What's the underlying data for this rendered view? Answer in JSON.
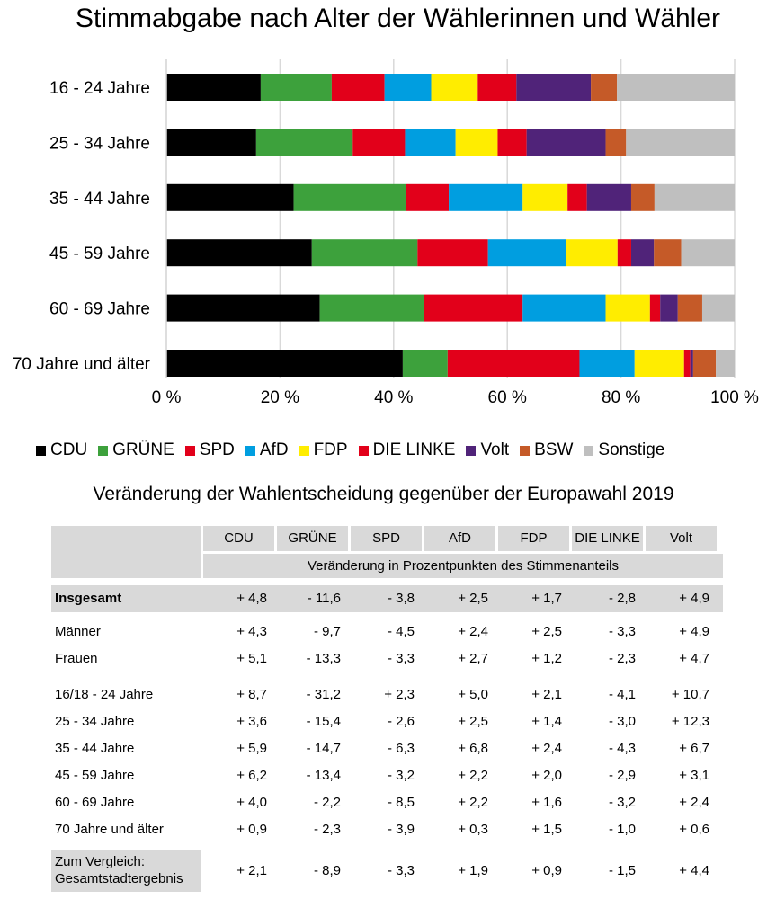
{
  "chart_data": {
    "type": "bar",
    "stacked": "percent",
    "orientation": "horizontal",
    "title": "Stimmabgabe nach Alter der Wählerinnen und Wähler",
    "categories": [
      "16 - 24 Jahre",
      "25 - 34 Jahre",
      "35 - 44 Jahre",
      "45 - 59 Jahre",
      "60 - 69 Jahre",
      "70 Jahre und älter"
    ],
    "xlim": [
      0,
      100
    ],
    "xticks": [
      "0 %",
      "20 %",
      "40 %",
      "60 %",
      "80 %",
      "100 %"
    ],
    "grid": true,
    "legend_position": "bottom",
    "series": [
      {
        "name": "CDU",
        "color": "#000000",
        "values": [
          16.6,
          15.8,
          22.4,
          25.6,
          27.0,
          41.6
        ]
      },
      {
        "name": "GRÜNE",
        "color": "#3da13c",
        "values": [
          12.5,
          17.0,
          19.8,
          18.6,
          18.4,
          7.9
        ]
      },
      {
        "name": "SPD",
        "color": "#e2001a",
        "values": [
          9.3,
          9.2,
          7.5,
          12.4,
          17.3,
          23.2
        ]
      },
      {
        "name": "AfD",
        "color": "#009ee0",
        "values": [
          8.2,
          8.9,
          13.0,
          13.7,
          14.6,
          9.7
        ]
      },
      {
        "name": "FDP",
        "color": "#ffed00",
        "values": [
          8.2,
          7.4,
          7.9,
          9.1,
          7.8,
          8.7
        ]
      },
      {
        "name": "DIE LINKE",
        "color": "#e2001a",
        "values": [
          6.8,
          5.1,
          3.4,
          2.4,
          1.8,
          1.1
        ]
      },
      {
        "name": "Volt",
        "color": "#502379",
        "values": [
          13.1,
          13.9,
          7.8,
          4.0,
          3.1,
          0.5
        ]
      },
      {
        "name": "BSW",
        "color": "#c55a28",
        "values": [
          4.6,
          3.6,
          4.1,
          4.8,
          4.3,
          4.0
        ]
      },
      {
        "name": "Sonstige",
        "color": "#bfbfbf",
        "values": [
          20.7,
          19.1,
          14.1,
          9.4,
          5.7,
          3.3
        ]
      }
    ]
  },
  "table": {
    "title": "Veränderung der Wahlentscheidung gegenüber der Europawahl 2019",
    "columns": [
      "CDU",
      "GRÜNE",
      "SPD",
      "AfD",
      "FDP",
      "DIE LINKE",
      "Volt"
    ],
    "subheader": "Veränderung in Prozentpunkten des Stimmenanteils",
    "rows": [
      {
        "label": "Insgesamt",
        "values": [
          "+ 4,8",
          "- 11,6",
          "- 3,8",
          "+ 2,5",
          "+ 1,7",
          "- 2,8",
          "+ 4,9"
        ]
      },
      {
        "label": "Männer",
        "values": [
          "+ 4,3",
          "- 9,7",
          "- 4,5",
          "+ 2,4",
          "+ 2,5",
          "- 3,3",
          "+ 4,9"
        ]
      },
      {
        "label": "Frauen",
        "values": [
          "+ 5,1",
          "- 13,3",
          "- 3,3",
          "+ 2,7",
          "+ 1,2",
          "- 2,3",
          "+ 4,7"
        ]
      },
      {
        "label": "16/18 - 24 Jahre",
        "values": [
          "+ 8,7",
          "- 31,2",
          "+ 2,3",
          "+ 5,0",
          "+ 2,1",
          "- 4,1",
          "+ 10,7"
        ]
      },
      {
        "label": "25 - 34 Jahre",
        "values": [
          "+ 3,6",
          "- 15,4",
          "- 2,6",
          "+ 2,5",
          "+ 1,4",
          "- 3,0",
          "+ 12,3"
        ]
      },
      {
        "label": "35 - 44 Jahre",
        "values": [
          "+ 5,9",
          "- 14,7",
          "- 6,3",
          "+ 6,8",
          "+ 2,4",
          "- 4,3",
          "+ 6,7"
        ]
      },
      {
        "label": "45 - 59 Jahre",
        "values": [
          "+ 6,2",
          "- 13,4",
          "- 3,2",
          "+ 2,2",
          "+ 2,0",
          "- 2,9",
          "+ 3,1"
        ]
      },
      {
        "label": "60 - 69 Jahre",
        "values": [
          "+ 4,0",
          "- 2,2",
          "- 8,5",
          "+ 2,2",
          "+ 1,6",
          "- 3,2",
          "+ 2,4"
        ]
      },
      {
        "label": "70 Jahre und älter",
        "values": [
          "+ 0,9",
          "- 2,3",
          "- 3,9",
          "+ 0,3",
          "+ 1,5",
          "- 1,0",
          "+ 0,6"
        ]
      }
    ],
    "comparison": {
      "label_line1": "Zum Vergleich:",
      "label_line2": "Gesamtstadtergebnis",
      "values": [
        "+ 2,1",
        "- 8,9",
        "- 3,3",
        "+ 1,9",
        "+ 0,9",
        "- 1,5",
        "+ 4,4"
      ]
    }
  }
}
